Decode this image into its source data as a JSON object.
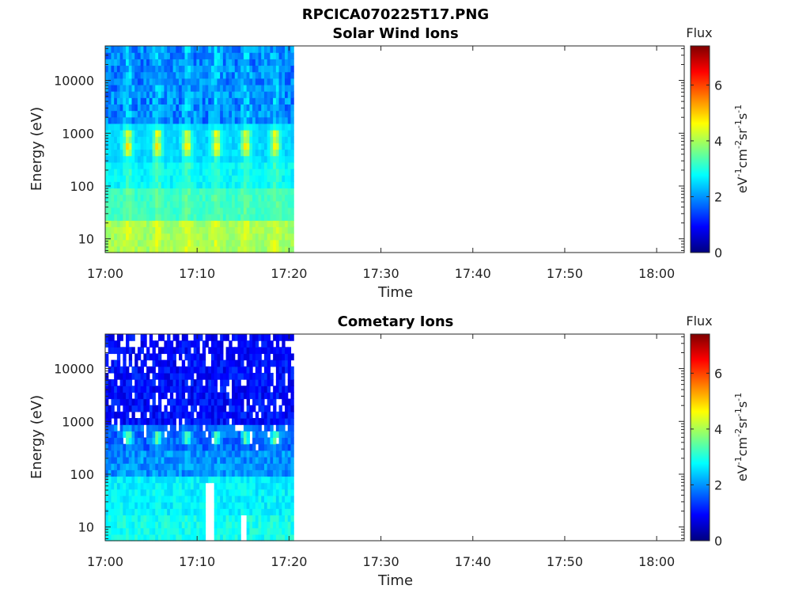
{
  "figure_title": "RPCICA070225T17.PNG",
  "colors": {
    "axis": "#262626",
    "colormap": "jet",
    "colormap_stops": [
      "#00007f",
      "#0000ff",
      "#007fff",
      "#00ffff",
      "#7fff7f",
      "#ffff00",
      "#ff7f00",
      "#ff0000",
      "#7f0000"
    ]
  },
  "chart_data": [
    {
      "type": "heatmap",
      "title": "Solar Wind Ions",
      "xlabel": "Time",
      "ylabel": "Energy (eV)",
      "x_ticks": [
        "17:00",
        "17:10",
        "17:20",
        "17:30",
        "17:40",
        "17:50",
        "18:00"
      ],
      "x_range": [
        "17:00",
        "18:03"
      ],
      "data_extent": [
        "17:00",
        "17:20:30"
      ],
      "y_scale": "log",
      "y_ticks": [
        "10",
        "100",
        "1000",
        "10000"
      ],
      "y_range": [
        5.5,
        45000
      ],
      "colorbar": {
        "title": "Flux",
        "label": "eV-1cm-2sr-1s-1",
        "range": [
          0,
          7.4
        ],
        "ticks": [
          "0",
          "2",
          "4",
          "6"
        ]
      },
      "time_bins": 64,
      "energy_bins": 32,
      "pattern": "periodic bursts every ~3.2 min; peak flux ~4.3-4.8 near 400-1200 eV; ~4 at lowest energies; ~1.5-2.5 at high energies"
    },
    {
      "type": "heatmap",
      "title": "Cometary Ions",
      "xlabel": "Time",
      "ylabel": "Energy (eV)",
      "x_ticks": [
        "17:00",
        "17:10",
        "17:20",
        "17:30",
        "17:40",
        "17:50",
        "18:00"
      ],
      "x_range": [
        "17:00",
        "18:03"
      ],
      "data_extent": [
        "17:00",
        "17:20:30"
      ],
      "y_scale": "log",
      "y_ticks": [
        "10",
        "100",
        "1000",
        "10000"
      ],
      "y_range": [
        5.5,
        45000
      ],
      "colorbar": {
        "title": "Flux",
        "label": "eV-1cm-2sr-1s-1",
        "range": [
          0,
          7.4
        ],
        "ticks": [
          "0",
          "2",
          "4",
          "6"
        ]
      },
      "time_bins": 64,
      "energy_bins": 32,
      "pattern": "mostly blue 0.6-1.5 at high energies with white gaps (no data); bursts ~3.5 near 500 eV; ~2.5-3 at low energies; white gaps near 17:11 and 17:15 at low energies"
    }
  ]
}
